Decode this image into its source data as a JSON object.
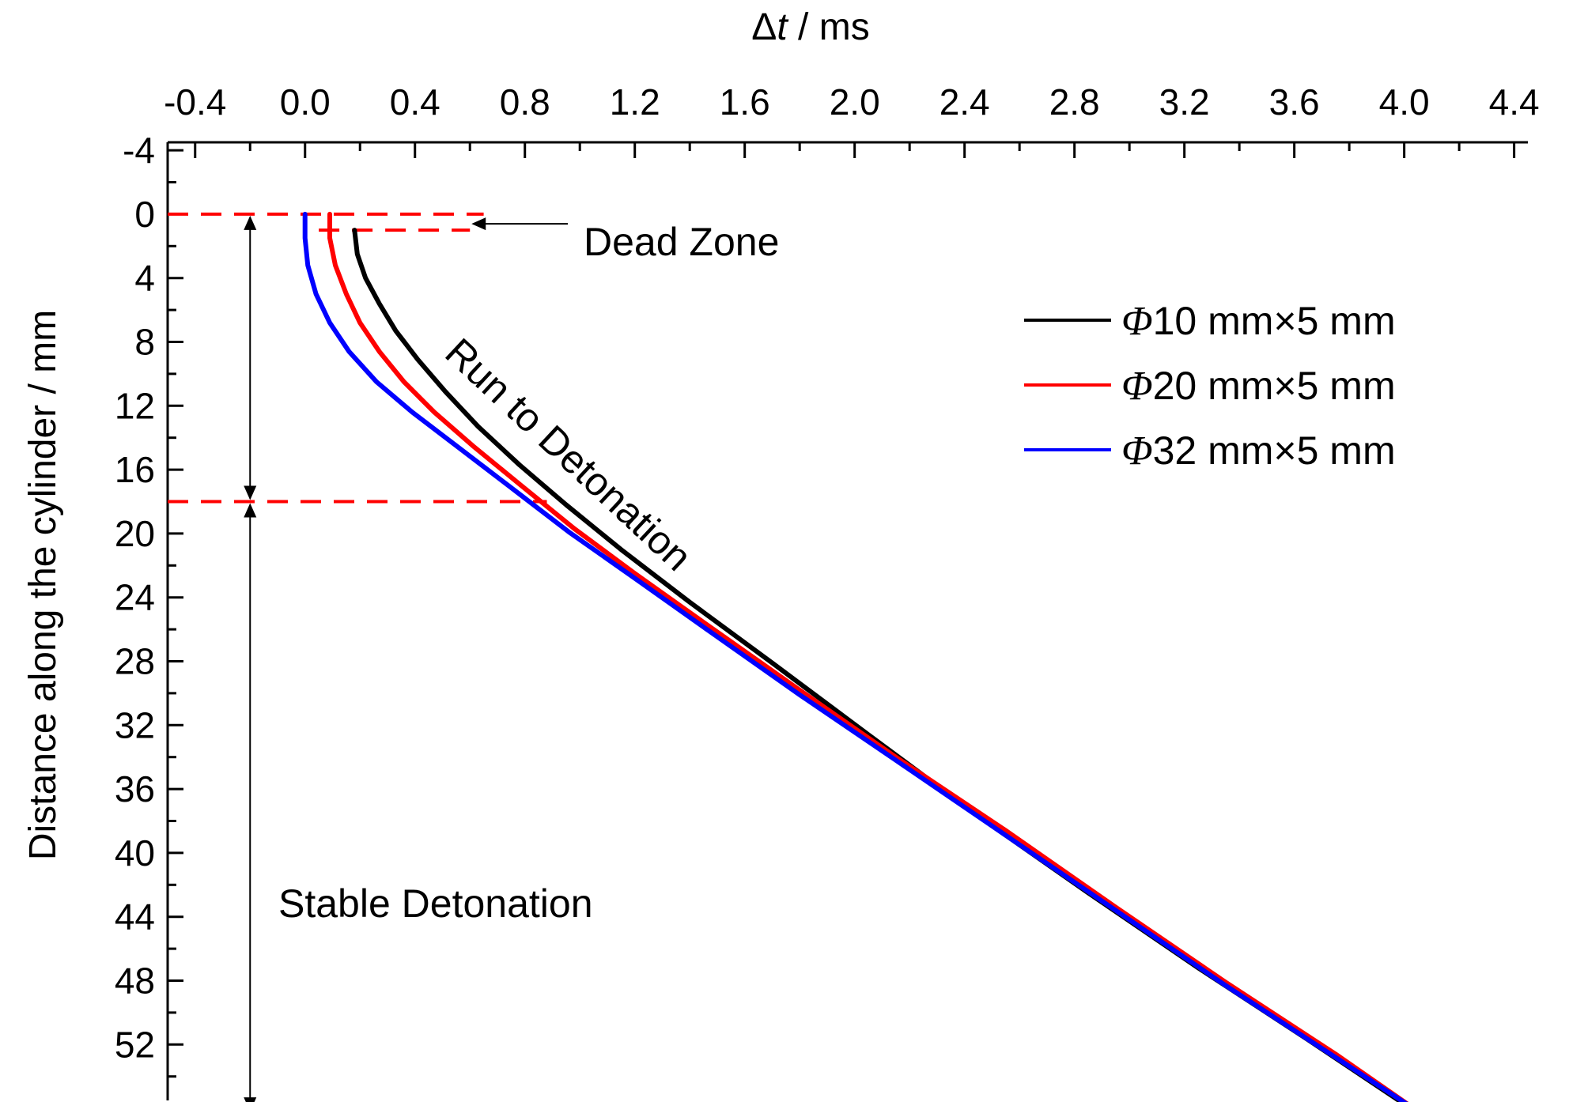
{
  "chart_data": {
    "type": "line",
    "xlabel_prefix": "Δ",
    "xlabel_var": "t",
    "xlabel_unit": " / ms",
    "ylabel": "Distance along the cylinder / mm",
    "xlim": [
      -0.5,
      4.45
    ],
    "ylim": [
      -4.5,
      55.5
    ],
    "y_inverted": true,
    "x_axis_position": "top",
    "x_ticks": [
      -0.4,
      0.0,
      0.4,
      0.8,
      1.2,
      1.6,
      2.0,
      2.4,
      2.8,
      3.2,
      3.6,
      4.0,
      4.4
    ],
    "x_tick_labels": [
      "-0.4",
      "0.0",
      "0.4",
      "0.8",
      "1.2",
      "1.6",
      "2.0",
      "2.4",
      "2.8",
      "3.2",
      "3.6",
      "4.0",
      "4.4"
    ],
    "y_ticks": [
      -4,
      0,
      4,
      8,
      12,
      16,
      20,
      24,
      28,
      32,
      36,
      40,
      44,
      48,
      52
    ],
    "y_tick_labels": [
      "-4",
      "0",
      "4",
      "8",
      "12",
      "16",
      "20",
      "24",
      "28",
      "32",
      "36",
      "40",
      "44",
      "48",
      "52"
    ],
    "grid": false,
    "legend_position": "top-right",
    "series": [
      {
        "phi": "Φ",
        "label": "10 mm×5 mm",
        "color": "#000000",
        "x": [
          0.18,
          0.19,
          0.22,
          0.27,
          0.33,
          0.41,
          0.51,
          0.63,
          0.78,
          0.95,
          1.15,
          1.4,
          1.7,
          2.05,
          2.45,
          2.85,
          3.25,
          3.65,
          4.05
        ],
        "y": [
          1.0,
          2.5,
          4.0,
          5.6,
          7.3,
          9.1,
          11.1,
          13.3,
          15.7,
          18.2,
          21.0,
          24.3,
          28.1,
          32.6,
          37.7,
          42.5,
          47.2,
          51.7,
          56.3
        ]
      },
      {
        "phi": "Φ",
        "label": "20 mm×5 mm",
        "color": "#ff0000",
        "x": [
          0.09,
          0.09,
          0.11,
          0.15,
          0.2,
          0.27,
          0.36,
          0.47,
          0.61,
          0.78,
          0.98,
          1.2,
          1.47,
          1.8,
          2.15,
          2.55,
          2.95,
          3.35,
          3.75,
          4.06
        ],
        "y": [
          0.0,
          1.5,
          3.2,
          5.0,
          6.8,
          8.6,
          10.5,
          12.4,
          14.5,
          16.9,
          19.7,
          22.5,
          25.8,
          29.8,
          34.0,
          38.6,
          43.4,
          48.1,
          52.6,
          56.3
        ]
      },
      {
        "phi": "Φ",
        "label": "32 mm×5 mm",
        "color": "#0000ff",
        "x": [
          0.0,
          0.0,
          0.01,
          0.04,
          0.09,
          0.16,
          0.26,
          0.39,
          0.55,
          0.74,
          0.96,
          1.2,
          1.47,
          1.8,
          2.15,
          2.55,
          2.95,
          3.35,
          3.75,
          4.06
        ],
        "y": [
          0.0,
          1.5,
          3.2,
          5.0,
          6.8,
          8.6,
          10.5,
          12.4,
          14.5,
          17.0,
          19.9,
          22.8,
          26.1,
          30.1,
          34.2,
          38.9,
          43.6,
          48.3,
          52.8,
          56.3
        ]
      }
    ],
    "annotations": {
      "dead_zone": "Dead Zone",
      "run_to_detonation": "Run to Detonation",
      "stable_detonation": "Stable Detonation"
    },
    "reference_lines": [
      {
        "y": 0.0,
        "x_range": [
          -0.5,
          0.65
        ]
      },
      {
        "y": 1.0,
        "x_range": [
          0.05,
          0.6
        ]
      },
      {
        "y": 18.0,
        "x_range": [
          -0.5,
          0.88
        ]
      },
      {
        "y": 56.3,
        "x_range": [
          -0.5,
          4.08
        ]
      }
    ],
    "colors": {
      "reference": "#ff0000",
      "axis": "#000000"
    }
  }
}
